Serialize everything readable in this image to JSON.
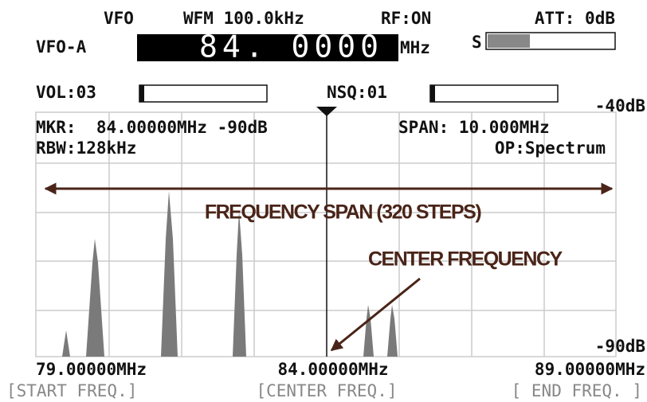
{
  "header": {
    "mode": "VFO",
    "modulation": "WFM 100.0kHz",
    "rf": "RF:ON",
    "att": "ATT: 0dB"
  },
  "vfo": {
    "name": "VFO-A",
    "frequency": "84. 0000",
    "unit": "MHz",
    "s_label": "S"
  },
  "controls": {
    "vol": "VOL:03",
    "nsq": "NSQ:01"
  },
  "display": {
    "top_level": "-40dB",
    "bottom_level": "-90dB",
    "marker": "MKR:  84.00000MHz -90dB",
    "span": "SPAN: 10.000MHz",
    "rbw": "RBW:128kHz",
    "op": "OP:Spectrum",
    "span_note": "FREQUENCY SPAN (320 STEPS)",
    "center_note": "CENTER FREQUENCY"
  },
  "footer": {
    "start": "79.00000MHz",
    "center": "84.00000MHz",
    "end": "89.00000MHz",
    "start_key": "[START FREQ.]",
    "center_key": "[CENTER FREQ.]",
    "end_key": "[ END FREQ. ]"
  }
}
